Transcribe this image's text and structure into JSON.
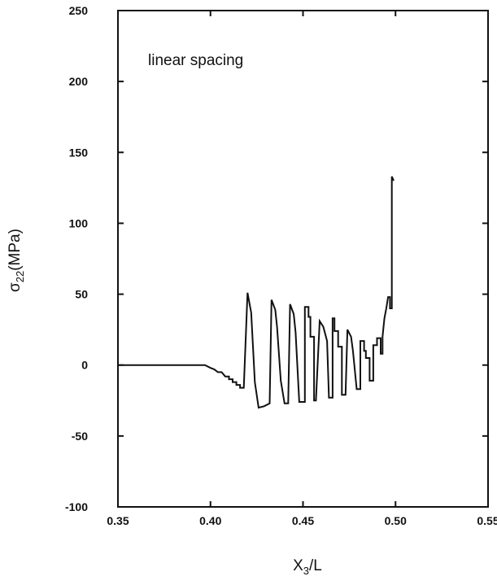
{
  "chart_data": {
    "type": "line",
    "annotation": "linear spacing",
    "ylabel": {
      "main": "σ",
      "sub": "22",
      "rest": "(MPa)"
    },
    "xlabel": {
      "main": "X",
      "sub": "3",
      "rest": "/L"
    },
    "xlim": [
      0.35,
      0.55
    ],
    "ylim": [
      -100,
      250
    ],
    "xticks": [
      0.35,
      0.4,
      0.45,
      0.5,
      0.55
    ],
    "xtick_labels": [
      "0.35",
      "0.40",
      "0.45",
      "0.50",
      "0.55"
    ],
    "yticks": [
      -100,
      -50,
      0,
      50,
      100,
      150,
      200,
      250
    ],
    "ytick_labels": [
      "-100",
      "-50",
      "0",
      "50",
      "100",
      "150",
      "200",
      "250"
    ],
    "grid": false,
    "line_color": "#111111",
    "series": [
      {
        "x": [
          0.35,
          0.395,
          0.397,
          0.4,
          0.402,
          0.404,
          0.406,
          0.408,
          0.408,
          0.41,
          0.41,
          0.412,
          0.412,
          0.414,
          0.414,
          0.416,
          0.416,
          0.418,
          0.418,
          0.42,
          0.42,
          0.422,
          0.422,
          0.424,
          0.424,
          0.426,
          0.426,
          0.429,
          0.429,
          0.432,
          0.432,
          0.433,
          0.433,
          0.435,
          0.435,
          0.436,
          0.436,
          0.438,
          0.438,
          0.44,
          0.44,
          0.442,
          0.442,
          0.443,
          0.443,
          0.445,
          0.445,
          0.446,
          0.446,
          0.448,
          0.448,
          0.451,
          0.451,
          0.453,
          0.453,
          0.454,
          0.454,
          0.456,
          0.456,
          0.457,
          0.457,
          0.459,
          0.459,
          0.461,
          0.461,
          0.463,
          0.463,
          0.464,
          0.464,
          0.466,
          0.466,
          0.467,
          0.467,
          0.469,
          0.469,
          0.471,
          0.471,
          0.473,
          0.473,
          0.474,
          0.474,
          0.476,
          0.476,
          0.477,
          0.477,
          0.479,
          0.479,
          0.481,
          0.481,
          0.483,
          0.483,
          0.484,
          0.484,
          0.486,
          0.486,
          0.488,
          0.488,
          0.489,
          0.489,
          0.49,
          0.49,
          0.492,
          0.492,
          0.493,
          0.493,
          0.4935,
          0.494,
          0.495,
          0.496,
          0.497,
          0.497,
          0.498,
          0.498,
          0.499
        ],
        "y": [
          0,
          0,
          0,
          -2,
          -3,
          -5,
          -5,
          -8,
          -8,
          -8,
          -10,
          -10,
          -12,
          -12,
          -14,
          -14,
          -16,
          -16,
          -16,
          51,
          51,
          37,
          37,
          -12,
          -12,
          -30,
          -30,
          -29,
          -29,
          -27,
          -27,
          46,
          46,
          39,
          39,
          27,
          27,
          -11,
          -11,
          -27,
          -27,
          -27,
          -27,
          43,
          43,
          36,
          36,
          23,
          23,
          -26,
          -26,
          -26,
          41,
          41,
          34,
          34,
          20,
          20,
          -25,
          -25,
          -25,
          31,
          31,
          27,
          27,
          17,
          17,
          -23,
          -23,
          -23,
          33,
          33,
          24,
          24,
          13,
          13,
          -21,
          -21,
          -21,
          25,
          25,
          20,
          20,
          10,
          10,
          -17,
          -17,
          -17,
          17,
          17,
          10,
          10,
          5,
          5,
          -11,
          -11,
          14,
          14,
          14,
          14,
          19,
          19,
          8,
          8,
          20,
          27,
          33,
          40,
          48,
          48,
          40,
          40,
          133,
          130
        ]
      }
    ]
  }
}
